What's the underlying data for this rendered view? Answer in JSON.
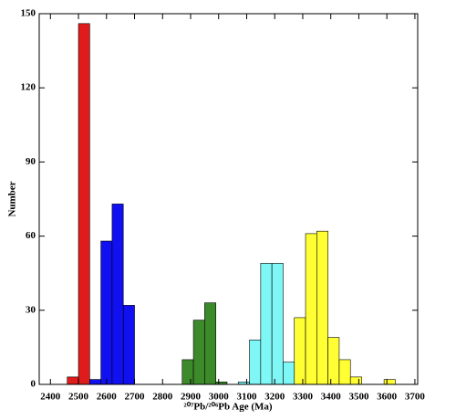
{
  "chart_data": {
    "type": "histogram",
    "xlabel": "²⁰⁷Pb/²⁰⁶Pb Age (Ma)",
    "ylabel": "Number",
    "xlim": [
      2360,
      3710
    ],
    "ylim": [
      0,
      150
    ],
    "xticks": [
      2400,
      2500,
      2600,
      2700,
      2800,
      2900,
      3000,
      3100,
      3200,
      3300,
      3400,
      3500,
      3600,
      3700
    ],
    "yticks": [
      0,
      30,
      60,
      90,
      120,
      150
    ],
    "series": [
      {
        "color": "#e01b1b",
        "bins": [
          2460,
          2500,
          2540
        ],
        "values": [
          3,
          146
        ]
      },
      {
        "color": "#1010f0",
        "bins": [
          2540,
          2580,
          2620,
          2660,
          2700
        ],
        "values": [
          2,
          58,
          73,
          32
        ]
      },
      {
        "color": "#3d8a2a",
        "bins": [
          2870,
          2910,
          2950,
          2990,
          3030
        ],
        "values": [
          10,
          26,
          33,
          1
        ]
      },
      {
        "color": "#ffff33",
        "bins": [
          3270,
          3310,
          3350,
          3390,
          3430,
          3470,
          3510,
          3550,
          3590,
          3630
        ],
        "values": [
          27,
          61,
          62,
          19,
          10,
          3,
          0,
          0,
          2
        ]
      },
      {
        "color": "#7ff7f7",
        "bins": [
          3070,
          3110,
          3150,
          3190,
          3230,
          3270
        ],
        "values": [
          1,
          18,
          49,
          49,
          9
        ]
      }
    ]
  }
}
